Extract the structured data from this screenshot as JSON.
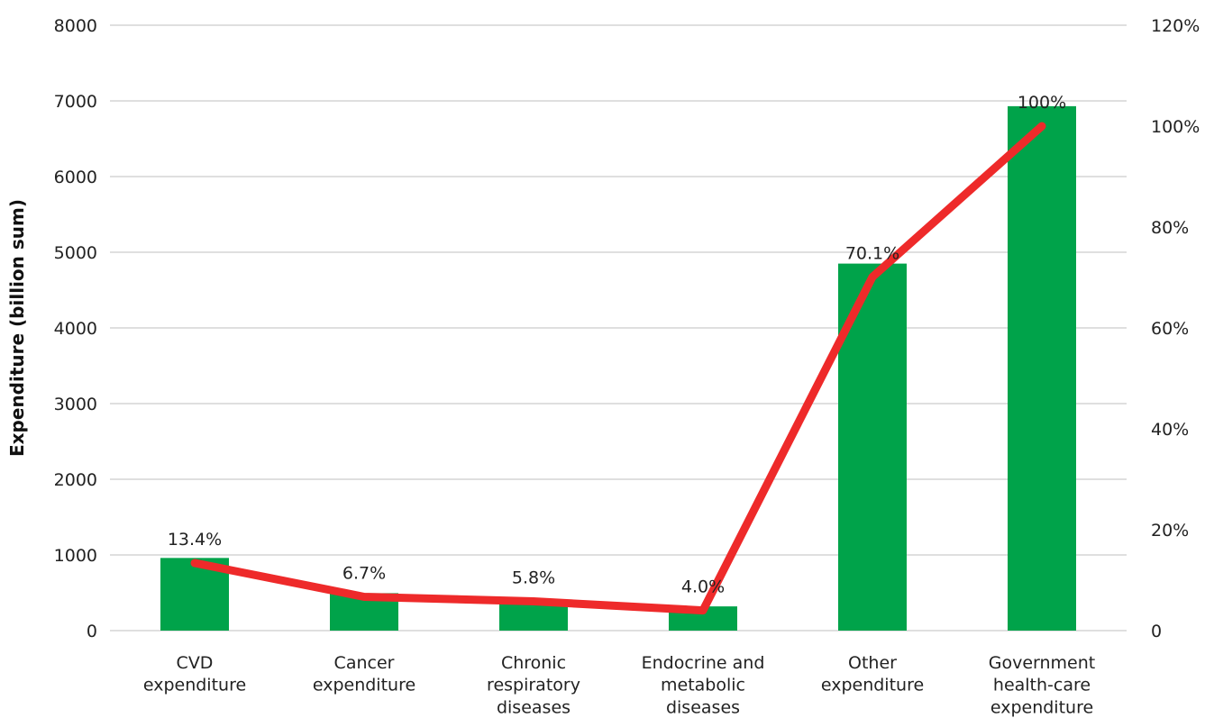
{
  "chart_data": {
    "type": "bar",
    "title": "",
    "categories": [
      [
        "CVD",
        "expenditure"
      ],
      [
        "Cancer",
        "expenditure"
      ],
      [
        "Chronic",
        "respiratory",
        "diseases"
      ],
      [
        "Endocrine and",
        "metabolic",
        "diseases"
      ],
      [
        "Other",
        "expenditure"
      ],
      [
        "Government",
        "health-care",
        "expenditure"
      ]
    ],
    "series": [
      {
        "type": "bar",
        "axis": "left",
        "values": [
          960,
          495,
          410,
          320,
          4850,
          6930
        ],
        "color": "#00a34a"
      },
      {
        "type": "line",
        "axis": "right",
        "values": [
          13.4,
          6.7,
          5.8,
          4.0,
          70.1,
          100
        ],
        "labels": [
          "13.4%",
          "6.7%",
          "5.8%",
          "4.0%",
          "70.1%",
          "100%"
        ],
        "color": "#ee2a2a"
      }
    ],
    "ylabel": "Expenditure (billion sum)",
    "ylim": [
      0,
      8000
    ],
    "yticks": [
      "0",
      "1000",
      "2000",
      "3000",
      "4000",
      "5000",
      "6000",
      "7000",
      "8000"
    ],
    "y2lim": [
      0,
      120
    ],
    "y2ticks": [
      "0",
      "20%",
      "40%",
      "60%",
      "80%",
      "100%",
      "120%"
    ],
    "grid": true,
    "legend": "none"
  }
}
